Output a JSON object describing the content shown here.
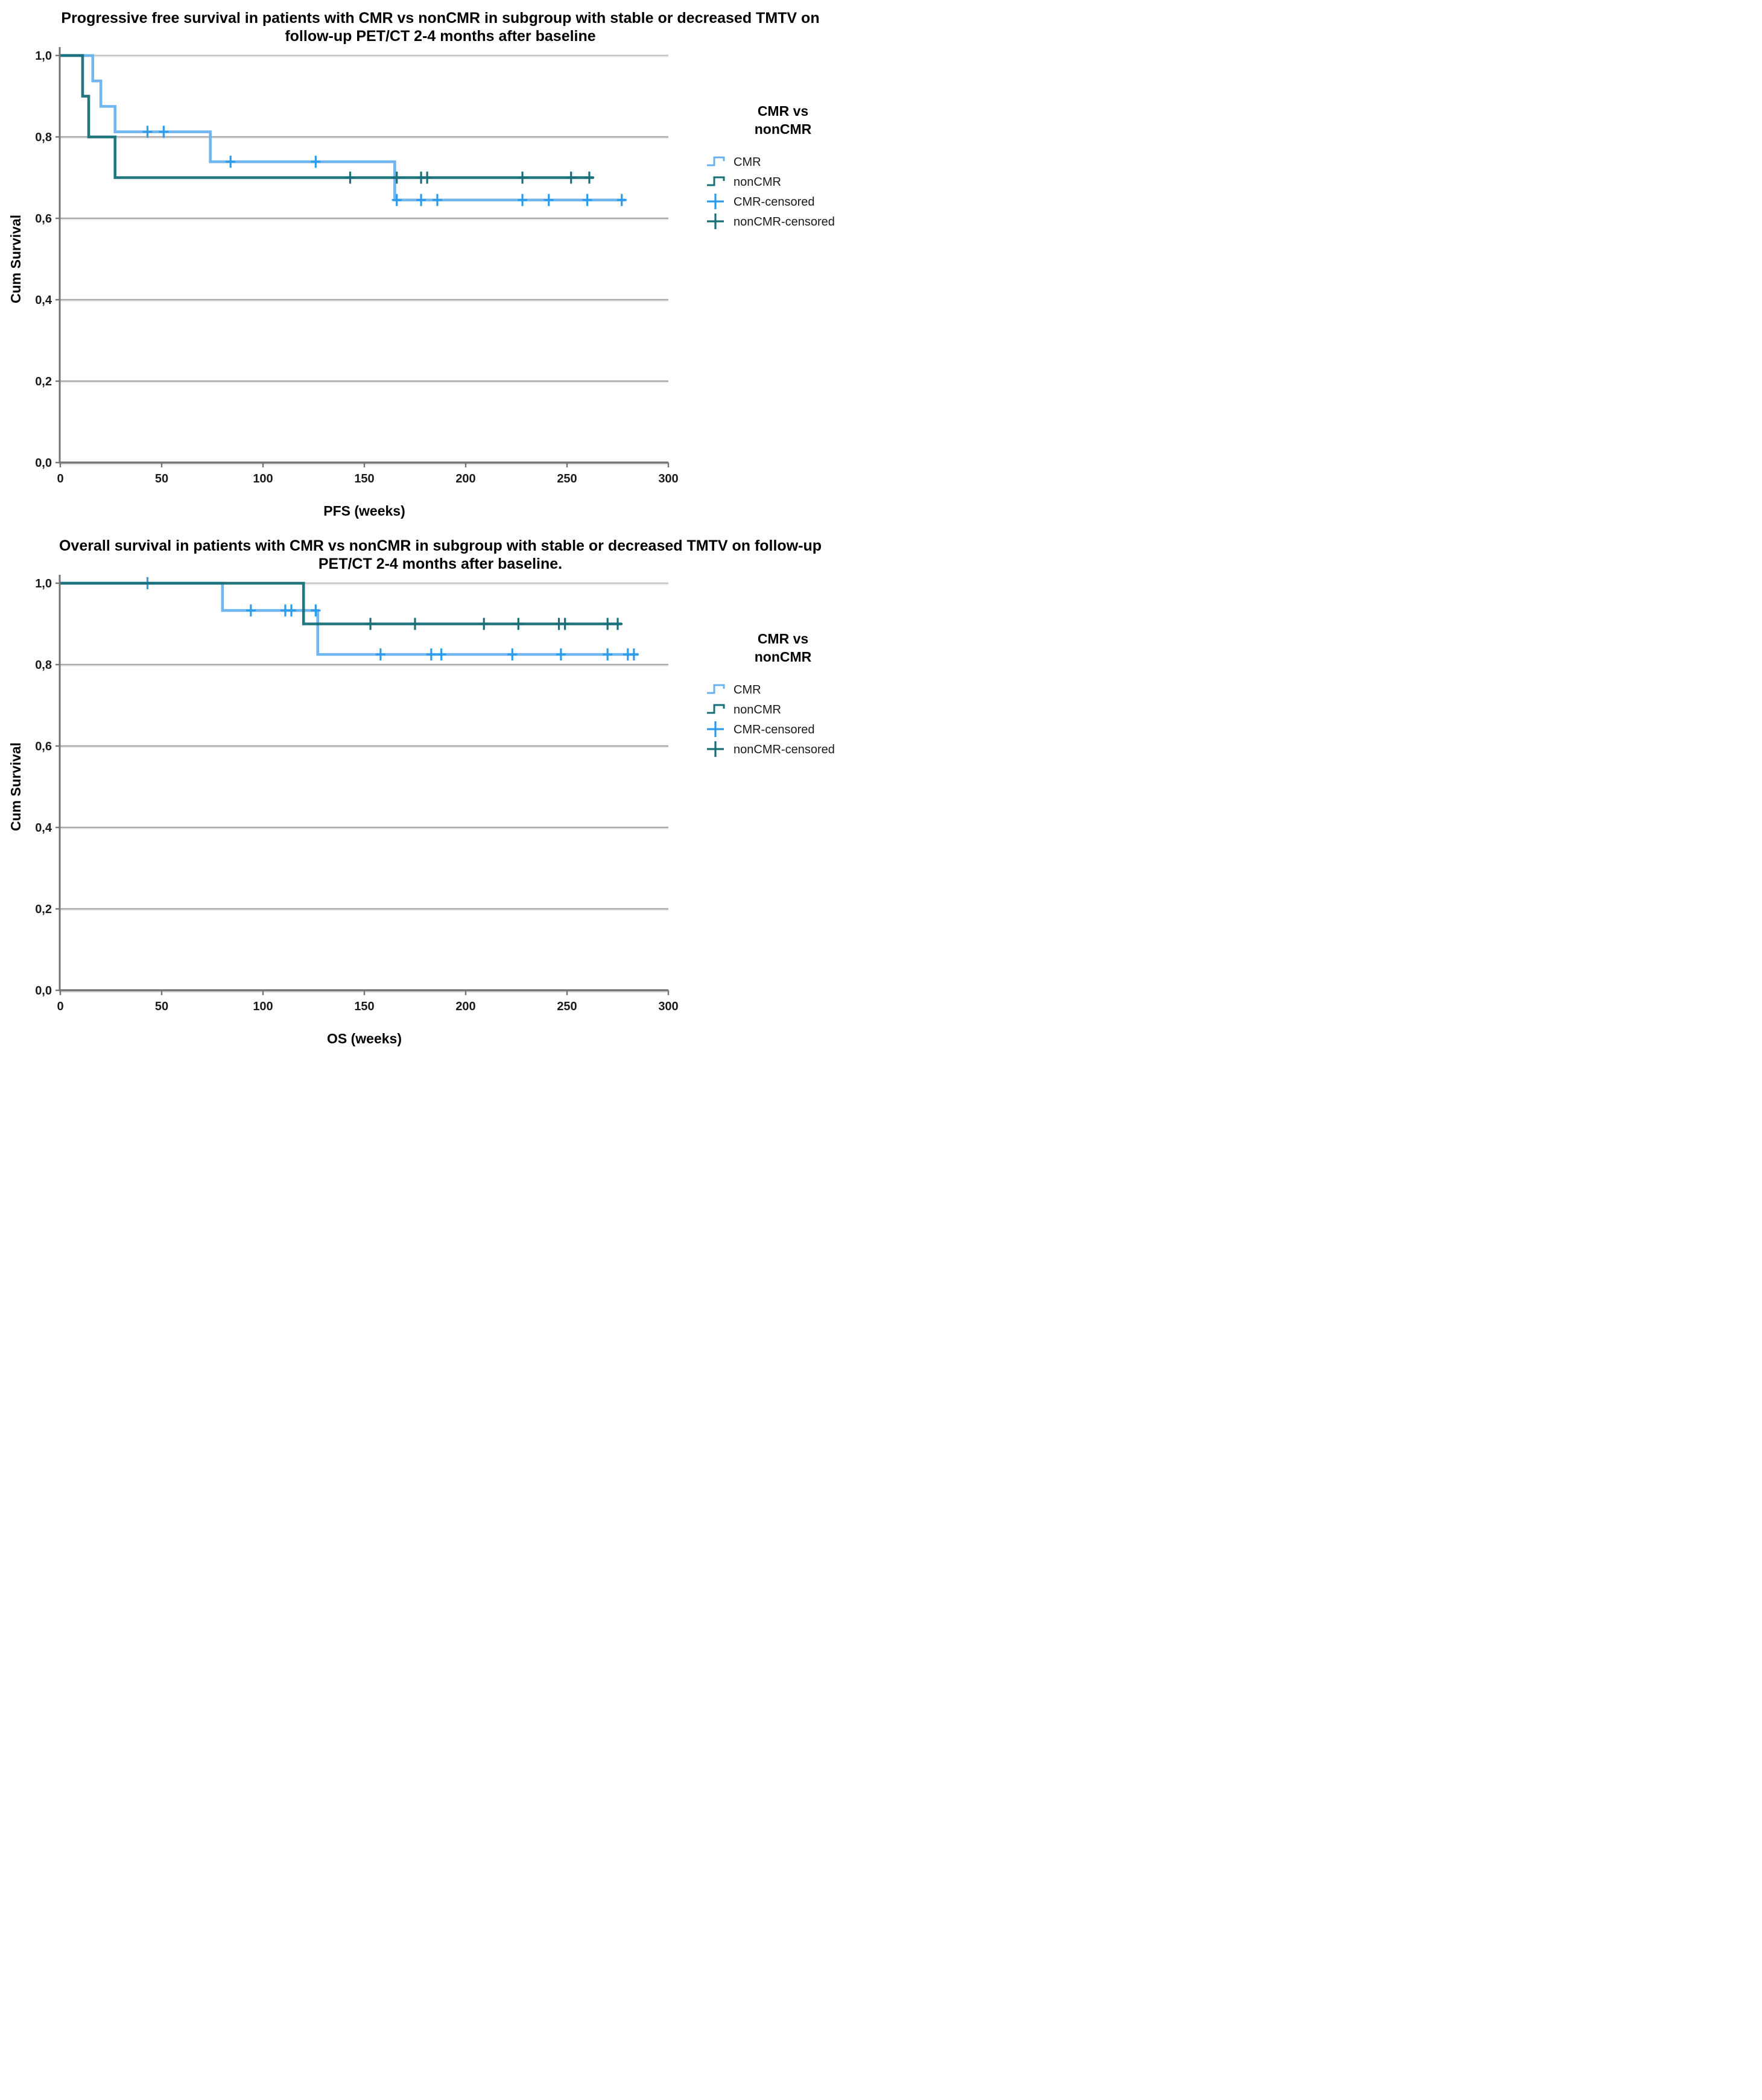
{
  "figure": {
    "background": "#ffffff",
    "palette": {
      "cmr_line": "#6AB2EF",
      "cmr_censor": "#2D9CEC",
      "noncmr_line": "#166F78",
      "noncmr_censor": "#1B6F78",
      "gridline": "#A9A9A9",
      "gridline_top": "#C6C6C6",
      "axis": "#757575"
    }
  },
  "chart_data": [
    {
      "type": "line",
      "subtype": "kaplan-meier-step",
      "title_lines": [
        "Progressive free survival in patients with CMR vs nonCMR in subgroup with stable or decreased TMTV on",
        "follow-up PET/CT 2-4 months after baseline"
      ],
      "xlabel": "PFS (weeks)",
      "ylabel": "Cum Survival",
      "xlim": [
        0,
        300
      ],
      "ylim": [
        0.0,
        1.0
      ],
      "xticks": [
        0,
        50,
        100,
        150,
        200,
        250,
        300
      ],
      "yticks": [
        1.0,
        0.8,
        0.6,
        0.4,
        0.2,
        0.0
      ],
      "ytick_labels": [
        "1,0",
        "0,8",
        "0,6",
        "0,4",
        "0,2",
        "0,0"
      ],
      "grid": "horizontal",
      "legend": {
        "title_lines": [
          "CMR vs",
          "nonCMR"
        ],
        "position": "right",
        "items": [
          {
            "label": "CMR",
            "glyph": "step",
            "color_key": "cmr_line"
          },
          {
            "label": "nonCMR",
            "glyph": "step",
            "color_key": "noncmr_line"
          },
          {
            "label": "CMR-censored",
            "glyph": "plus",
            "color_key": "cmr_censor"
          },
          {
            "label": "nonCMR-censored",
            "glyph": "plus",
            "color_key": "noncmr_censor"
          }
        ]
      },
      "series": [
        {
          "name": "CMR",
          "color_key": "cmr_line",
          "censor_color_key": "cmr_censor",
          "steps": [
            [
              0,
              1.0
            ],
            [
              16,
              0.9375
            ],
            [
              20,
              0.875
            ],
            [
              27,
              0.8125
            ],
            [
              74,
              0.739
            ],
            [
              165,
              0.645
            ]
          ],
          "end": 279,
          "censored": [
            [
              43,
              0.8125
            ],
            [
              51,
              0.8125
            ],
            [
              84,
              0.739
            ],
            [
              126,
              0.739
            ],
            [
              166,
              0.645
            ],
            [
              178,
              0.645
            ],
            [
              186,
              0.645
            ],
            [
              228,
              0.645
            ],
            [
              241,
              0.645
            ],
            [
              260,
              0.645
            ],
            [
              277,
              0.645
            ]
          ]
        },
        {
          "name": "nonCMR",
          "color_key": "noncmr_line",
          "censor_color_key": "noncmr_censor",
          "steps": [
            [
              0,
              1.0
            ],
            [
              11,
              0.9
            ],
            [
              14,
              0.8
            ],
            [
              27,
              0.7
            ]
          ],
          "end": 263,
          "censored": [
            [
              143,
              0.7
            ],
            [
              166,
              0.7
            ],
            [
              178,
              0.7
            ],
            [
              181,
              0.7
            ],
            [
              228,
              0.7
            ],
            [
              252,
              0.7
            ],
            [
              261,
              0.7
            ]
          ]
        }
      ]
    },
    {
      "type": "line",
      "subtype": "kaplan-meier-step",
      "title_lines": [
        "Overall survival in patients with CMR vs nonCMR in subgroup with stable or decreased TMTV on follow-up",
        "PET/CT 2-4 months after baseline."
      ],
      "xlabel": "OS (weeks)",
      "ylabel": "Cum Survival",
      "xlim": [
        0,
        300
      ],
      "ylim": [
        0.0,
        1.0
      ],
      "xticks": [
        0,
        50,
        100,
        150,
        200,
        250,
        300
      ],
      "yticks": [
        1.0,
        0.8,
        0.6,
        0.4,
        0.2,
        0.0
      ],
      "ytick_labels": [
        "1,0",
        "0,8",
        "0,6",
        "0,4",
        "0,2",
        "0,0"
      ],
      "grid": "horizontal",
      "legend": {
        "title_lines": [
          "CMR vs",
          "nonCMR"
        ],
        "position": "right",
        "items": [
          {
            "label": "CMR",
            "glyph": "step",
            "color_key": "cmr_line"
          },
          {
            "label": "nonCMR",
            "glyph": "step",
            "color_key": "noncmr_line"
          },
          {
            "label": "CMR-censored",
            "glyph": "plus",
            "color_key": "cmr_censor"
          },
          {
            "label": "nonCMR-censored",
            "glyph": "plus",
            "color_key": "noncmr_censor"
          }
        ]
      },
      "series": [
        {
          "name": "CMR",
          "color_key": "cmr_line",
          "censor_color_key": "cmr_censor",
          "steps": [
            [
              0,
              1.0
            ],
            [
              80,
              0.933
            ],
            [
              127,
              0.825
            ]
          ],
          "end": 285,
          "censored": [
            [
              43,
              1.0
            ],
            [
              94,
              0.933
            ],
            [
              111,
              0.933
            ],
            [
              114,
              0.933
            ],
            [
              126,
              0.933
            ],
            [
              158,
              0.825
            ],
            [
              183,
              0.825
            ],
            [
              188,
              0.825
            ],
            [
              223,
              0.825
            ],
            [
              247,
              0.825
            ],
            [
              270,
              0.825
            ],
            [
              280,
              0.825
            ],
            [
              283,
              0.825
            ]
          ]
        },
        {
          "name": "nonCMR",
          "color_key": "noncmr_line",
          "censor_color_key": "noncmr_censor",
          "steps": [
            [
              0,
              1.0
            ],
            [
              120,
              0.9
            ]
          ],
          "end": 277,
          "censored": [
            [
              153,
              0.9
            ],
            [
              175,
              0.9
            ],
            [
              209,
              0.9
            ],
            [
              226,
              0.9
            ],
            [
              246,
              0.9
            ],
            [
              249,
              0.9
            ],
            [
              270,
              0.9
            ],
            [
              275,
              0.9
            ]
          ]
        }
      ]
    }
  ]
}
